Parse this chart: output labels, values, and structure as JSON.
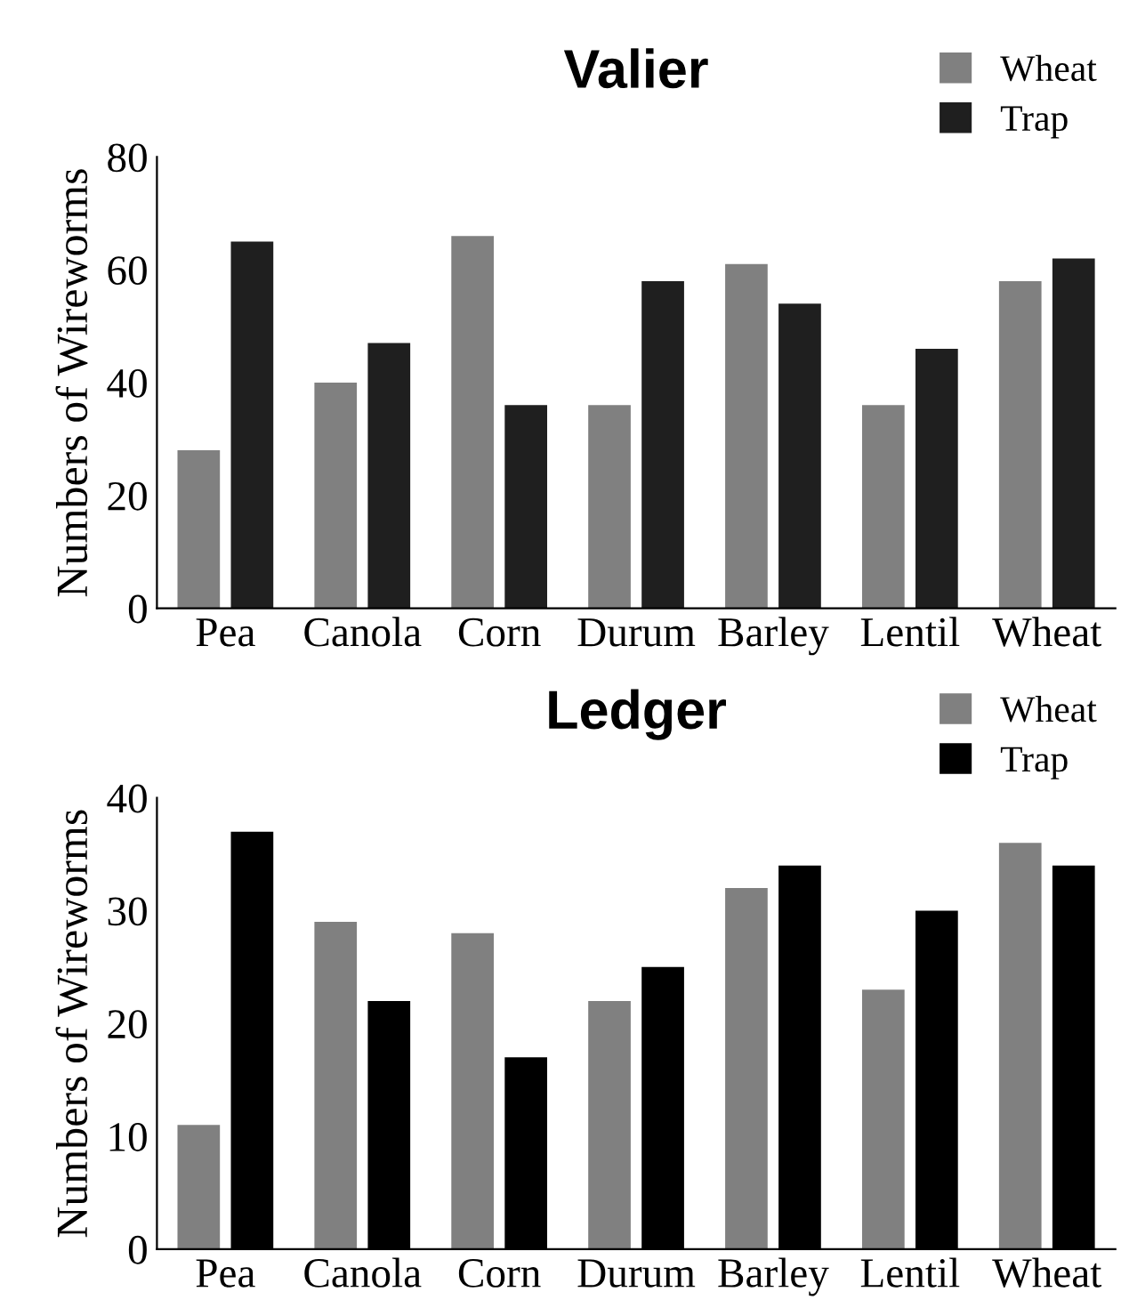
{
  "chart_data": [
    {
      "type": "bar",
      "title": "Valier",
      "ylabel": "Numbers of Wireworms",
      "categories": [
        "Pea",
        "Canola",
        "Corn",
        "Durum",
        "Barley",
        "Lentil",
        "Wheat"
      ],
      "series": [
        {
          "name": "Wheat",
          "color": "#808080",
          "values": [
            28,
            40,
            66,
            36,
            61,
            36,
            58
          ]
        },
        {
          "name": "Trap",
          "color": "#1f1f1f",
          "values": [
            65,
            47,
            36,
            58,
            54,
            46,
            62
          ]
        }
      ],
      "ylim": [
        0,
        80
      ],
      "yticks": [
        0,
        20,
        40,
        60,
        80
      ],
      "grid": false,
      "legend": "top right"
    },
    {
      "type": "bar",
      "title": "Ledger",
      "ylabel": "Numbers of Wireworms",
      "categories": [
        "Pea",
        "Canola",
        "Corn",
        "Durum",
        "Barley",
        "Lentil",
        "Wheat"
      ],
      "series": [
        {
          "name": "Wheat",
          "color": "#808080",
          "values": [
            11,
            29,
            28,
            22,
            32,
            23,
            36
          ]
        },
        {
          "name": "Trap",
          "color": "#000000",
          "values": [
            37,
            22,
            17,
            25,
            34,
            30,
            34
          ]
        }
      ],
      "ylim": [
        0,
        40
      ],
      "yticks": [
        0,
        10,
        20,
        30,
        40
      ],
      "grid": false,
      "legend": "top right"
    }
  ]
}
